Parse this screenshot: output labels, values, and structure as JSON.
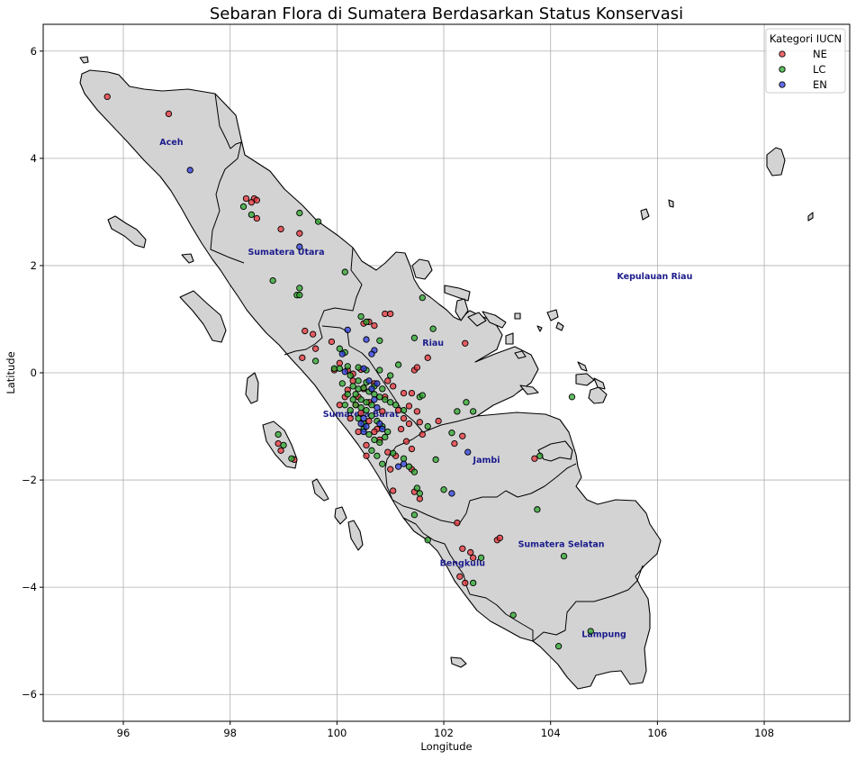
{
  "chart_data": {
    "type": "scatter",
    "title": "Sebaran Flora di Sumatera Berdasarkan Status Konservasi",
    "xlabel": "Longitude",
    "ylabel": "Latitude",
    "xlim": [
      94.5,
      109.6
    ],
    "ylim": [
      -6.5,
      6.5
    ],
    "x_ticks": [
      96,
      98,
      100,
      102,
      104,
      106,
      108
    ],
    "y_ticks": [
      6,
      4,
      2,
      0,
      -2,
      -4,
      -6
    ],
    "grid": true,
    "legend": {
      "title": "Kategori IUCN",
      "placement": "top-right",
      "entries": [
        {
          "label": "NE",
          "color": "#e8363b"
        },
        {
          "label": "LC",
          "color": "#2ea82e"
        },
        {
          "label": "EN",
          "color": "#2d3de0"
        }
      ]
    },
    "regions": [
      {
        "name": "Aceh",
        "lon": 96.9,
        "lat": 4.25
      },
      {
        "name": "Sumatera Utara",
        "lon": 99.05,
        "lat": 2.2
      },
      {
        "name": "Kepulauan Riau",
        "lon": 105.95,
        "lat": 1.75
      },
      {
        "name": "Riau",
        "lon": 101.8,
        "lat": 0.5
      },
      {
        "name": "Sumatera Barat",
        "lon": 100.45,
        "lat": -0.82
      },
      {
        "name": "Jambi",
        "lon": 102.8,
        "lat": -1.68
      },
      {
        "name": "Sumatera Selatan",
        "lon": 104.2,
        "lat": -3.25
      },
      {
        "name": "Bengkulu",
        "lon": 102.35,
        "lat": -3.6
      },
      {
        "name": "Lampung",
        "lon": 105.0,
        "lat": -4.93
      }
    ],
    "series": [
      {
        "name": "NE",
        "points": [
          [
            95.7,
            5.15
          ],
          [
            96.85,
            4.83
          ],
          [
            98.3,
            3.25
          ],
          [
            98.45,
            3.25
          ],
          [
            98.5,
            3.22
          ],
          [
            98.4,
            3.18
          ],
          [
            98.5,
            2.88
          ],
          [
            98.95,
            2.68
          ],
          [
            99.3,
            2.6
          ],
          [
            98.9,
            -1.32
          ],
          [
            98.95,
            -1.45
          ],
          [
            99.2,
            -1.62
          ],
          [
            99.4,
            0.78
          ],
          [
            99.55,
            0.72
          ],
          [
            99.6,
            0.45
          ],
          [
            99.35,
            0.28
          ],
          [
            99.9,
            0.58
          ],
          [
            99.95,
            0.05
          ],
          [
            100.05,
            0.18
          ],
          [
            100.2,
            0.05
          ],
          [
            100.3,
            -0.02
          ],
          [
            100.45,
            0.06
          ],
          [
            100.5,
            0.92
          ],
          [
            100.6,
            0.95
          ],
          [
            100.7,
            0.88
          ],
          [
            100.9,
            1.1
          ],
          [
            101.0,
            1.1
          ],
          [
            101.05,
            -0.25
          ],
          [
            101.25,
            -0.38
          ],
          [
            101.4,
            -0.38
          ],
          [
            101.45,
            0.05
          ],
          [
            101.5,
            0.1
          ],
          [
            101.7,
            0.28
          ],
          [
            101.35,
            -0.62
          ],
          [
            101.5,
            -0.72
          ],
          [
            101.55,
            -0.92
          ],
          [
            101.6,
            -1.15
          ],
          [
            101.3,
            -1.28
          ],
          [
            101.4,
            -1.42
          ],
          [
            101.2,
            -1.05
          ],
          [
            100.85,
            -0.72
          ],
          [
            100.6,
            -0.55
          ],
          [
            100.4,
            -0.45
          ],
          [
            100.2,
            -0.32
          ],
          [
            100.9,
            -0.45
          ],
          [
            100.75,
            -1.05
          ],
          [
            100.55,
            -1.35
          ],
          [
            100.95,
            -1.48
          ],
          [
            101.1,
            -1.55
          ],
          [
            101.05,
            -2.2
          ],
          [
            101.4,
            -1.8
          ],
          [
            101.55,
            -2.35
          ],
          [
            101.45,
            -2.22
          ],
          [
            102.2,
            -1.32
          ],
          [
            102.35,
            -1.18
          ],
          [
            102.4,
            0.55
          ],
          [
            101.9,
            -0.9
          ],
          [
            102.25,
            -2.8
          ],
          [
            102.35,
            -3.28
          ],
          [
            102.5,
            -3.35
          ],
          [
            102.55,
            -3.45
          ],
          [
            102.4,
            -3.92
          ],
          [
            102.3,
            -3.8
          ],
          [
            103.0,
            -3.12
          ],
          [
            103.05,
            -3.08
          ],
          [
            103.7,
            -1.6
          ],
          [
            100.15,
            -0.45
          ],
          [
            100.35,
            -0.6
          ],
          [
            100.45,
            -0.75
          ],
          [
            100.6,
            -0.9
          ],
          [
            100.7,
            -1.1
          ],
          [
            100.8,
            -1.25
          ],
          [
            100.3,
            -0.15
          ],
          [
            100.5,
            -0.3
          ],
          [
            100.7,
            -0.2
          ],
          [
            100.95,
            -0.15
          ],
          [
            101.15,
            -0.7
          ],
          [
            101.25,
            -0.85
          ],
          [
            101.35,
            -0.95
          ],
          [
            100.25,
            -0.85
          ],
          [
            100.05,
            -0.6
          ],
          [
            100.4,
            -1.1
          ],
          [
            100.55,
            -1.55
          ],
          [
            101.0,
            -1.8
          ]
        ]
      },
      {
        "name": "LC",
        "points": [
          [
            98.25,
            3.1
          ],
          [
            98.4,
            2.95
          ],
          [
            99.3,
            2.98
          ],
          [
            99.65,
            2.82
          ],
          [
            100.15,
            1.88
          ],
          [
            98.8,
            1.72
          ],
          [
            99.3,
            1.58
          ],
          [
            99.25,
            1.45
          ],
          [
            99.3,
            1.45
          ],
          [
            100.45,
            1.05
          ],
          [
            100.55,
            0.95
          ],
          [
            100.8,
            0.6
          ],
          [
            101.45,
            0.65
          ],
          [
            101.6,
            1.4
          ],
          [
            101.8,
            0.82
          ],
          [
            101.15,
            0.15
          ],
          [
            100.05,
            0.45
          ],
          [
            100.15,
            0.38
          ],
          [
            99.6,
            0.22
          ],
          [
            99.95,
            0.08
          ],
          [
            100.05,
            0.08
          ],
          [
            100.2,
            0.12
          ],
          [
            100.4,
            0.1
          ],
          [
            100.55,
            0.05
          ],
          [
            100.8,
            0.05
          ],
          [
            101.0,
            -0.05
          ],
          [
            100.3,
            -0.25
          ],
          [
            100.4,
            -0.3
          ],
          [
            100.5,
            -0.28
          ],
          [
            100.6,
            -0.35
          ],
          [
            100.7,
            -0.4
          ],
          [
            100.8,
            -0.45
          ],
          [
            100.9,
            -0.5
          ],
          [
            101.0,
            -0.55
          ],
          [
            101.1,
            -0.6
          ],
          [
            101.25,
            -0.7
          ],
          [
            100.2,
            -0.4
          ],
          [
            100.3,
            -0.5
          ],
          [
            100.35,
            -0.6
          ],
          [
            100.45,
            -0.65
          ],
          [
            100.55,
            -0.7
          ],
          [
            100.65,
            -0.8
          ],
          [
            100.75,
            -0.9
          ],
          [
            100.85,
            -1.0
          ],
          [
            100.95,
            -1.1
          ],
          [
            100.5,
            -1.05
          ],
          [
            100.6,
            -1.15
          ],
          [
            100.7,
            -1.25
          ],
          [
            100.8,
            -1.3
          ],
          [
            100.9,
            -1.2
          ],
          [
            100.65,
            -1.45
          ],
          [
            100.75,
            -1.55
          ],
          [
            100.85,
            -1.7
          ],
          [
            101.05,
            -1.5
          ],
          [
            101.25,
            -1.6
          ],
          [
            101.35,
            -1.75
          ],
          [
            101.45,
            -1.85
          ],
          [
            101.5,
            -2.15
          ],
          [
            101.55,
            -2.25
          ],
          [
            101.45,
            -2.65
          ],
          [
            101.7,
            -3.12
          ],
          [
            101.85,
            -1.62
          ],
          [
            102.0,
            -2.18
          ],
          [
            102.15,
            -1.12
          ],
          [
            102.25,
            -0.72
          ],
          [
            102.42,
            -0.55
          ],
          [
            102.55,
            -0.72
          ],
          [
            101.55,
            -0.45
          ],
          [
            101.6,
            -0.42
          ],
          [
            101.7,
            -1.0
          ],
          [
            102.55,
            -3.92
          ],
          [
            102.7,
            -3.45
          ],
          [
            103.3,
            -4.52
          ],
          [
            103.8,
            -1.55
          ],
          [
            103.75,
            -2.55
          ],
          [
            104.4,
            -0.45
          ],
          [
            104.25,
            -3.42
          ],
          [
            104.15,
            -5.1
          ],
          [
            104.75,
            -4.82
          ],
          [
            98.9,
            -1.15
          ],
          [
            99.0,
            -1.35
          ],
          [
            99.15,
            -1.6
          ],
          [
            100.1,
            -0.2
          ],
          [
            100.25,
            -0.05
          ],
          [
            100.4,
            -0.15
          ],
          [
            100.55,
            -0.18
          ],
          [
            100.7,
            -0.25
          ],
          [
            100.85,
            -0.3
          ],
          [
            100.15,
            -0.6
          ],
          [
            100.25,
            -0.7
          ],
          [
            100.4,
            -0.85
          ],
          [
            100.5,
            -0.95
          ],
          [
            100.35,
            -0.4
          ],
          [
            100.45,
            -0.5
          ],
          [
            100.55,
            -0.55
          ],
          [
            100.65,
            -0.6
          ]
        ]
      },
      {
        "name": "EN",
        "points": [
          [
            97.25,
            3.78
          ],
          [
            99.3,
            2.35
          ],
          [
            100.2,
            0.8
          ],
          [
            100.1,
            0.35
          ],
          [
            100.55,
            0.62
          ],
          [
            100.7,
            0.42
          ],
          [
            100.65,
            0.35
          ],
          [
            100.5,
            0.08
          ],
          [
            100.15,
            0.02
          ],
          [
            100.6,
            -0.15
          ],
          [
            100.75,
            -0.2
          ],
          [
            100.65,
            -0.3
          ],
          [
            100.7,
            -0.5
          ],
          [
            100.5,
            -0.85
          ],
          [
            100.45,
            -0.95
          ],
          [
            100.55,
            -1.0
          ],
          [
            100.5,
            -1.1
          ],
          [
            100.8,
            -0.95
          ],
          [
            100.85,
            -1.05
          ],
          [
            101.15,
            -1.75
          ],
          [
            101.25,
            -1.7
          ],
          [
            102.45,
            -1.48
          ],
          [
            102.15,
            -2.25
          ],
          [
            100.75,
            -0.65
          ]
        ]
      }
    ]
  }
}
